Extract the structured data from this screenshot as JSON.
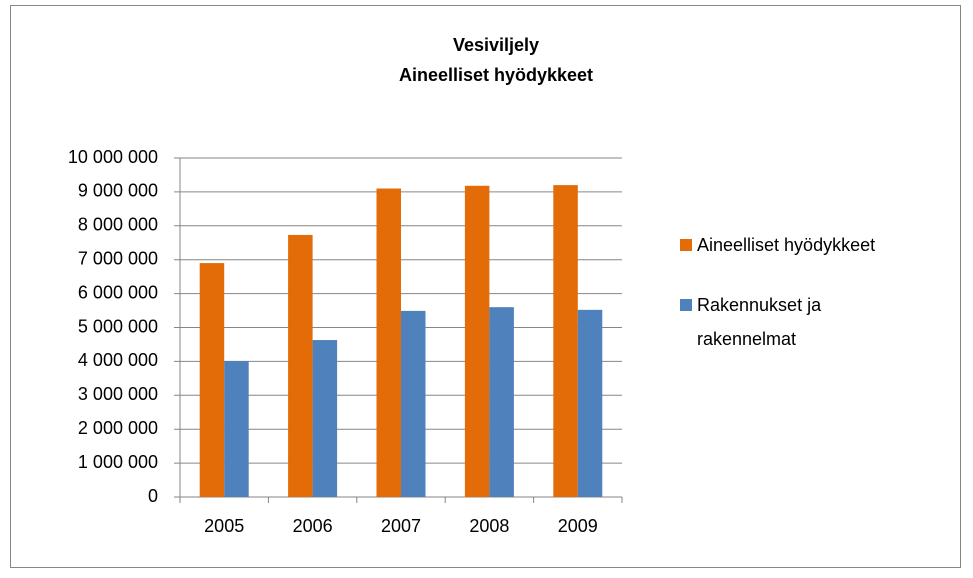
{
  "chart_data": {
    "type": "bar",
    "title": "Vesiviljely",
    "subtitle": "Aineelliset hyödykkeet",
    "categories": [
      "2005",
      "2006",
      "2007",
      "2008",
      "2009"
    ],
    "series": [
      {
        "name": "Aineelliset hyödykkeet",
        "color": "#e36c09",
        "values": [
          6900000,
          7730000,
          9100000,
          9180000,
          9200000
        ]
      },
      {
        "name": "Rakennukset ja rakennelmat",
        "color": "#4f81bd",
        "values": [
          4010000,
          4630000,
          5490000,
          5600000,
          5520000
        ]
      }
    ],
    "ylim": [
      0,
      10000000
    ],
    "yticks": [
      0,
      {
        "value": 1000000,
        "label": "1 000 000"
      },
      {
        "value": 2000000,
        "label": "2 000 000"
      },
      {
        "value": 3000000,
        "label": "3 000 000"
      },
      {
        "value": 4000000,
        "label": "4 000 000"
      },
      {
        "value": 5000000,
        "label": "5 000 000"
      },
      {
        "value": 6000000,
        "label": "6 000 000"
      },
      {
        "value": 7000000,
        "label": "7 000 000"
      },
      {
        "value": 8000000,
        "label": "8 000 000"
      },
      {
        "value": 9000000,
        "label": "9 000 000"
      },
      {
        "value": 10000000,
        "label": "10 000 000"
      }
    ],
    "grid": true,
    "legend": "right"
  }
}
